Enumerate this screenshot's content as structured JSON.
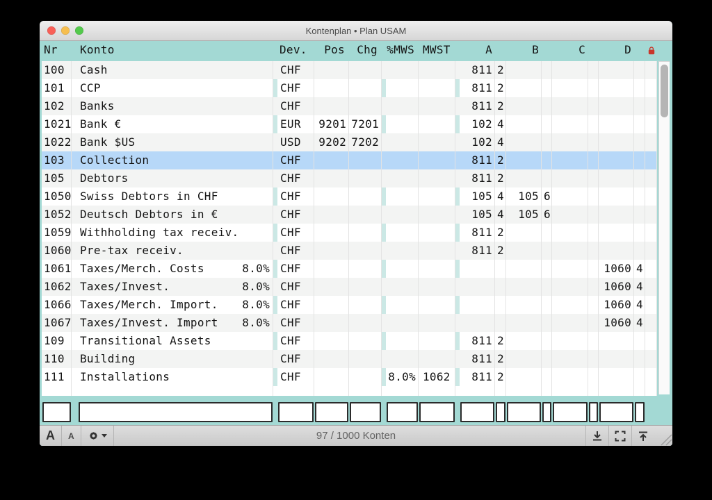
{
  "window": {
    "title": "Kontenplan • Plan USAM"
  },
  "colors": {
    "header_teal": "#a3d9d4",
    "separator_teal": "#cbe8e5",
    "selection_blue": "#b7d8f8",
    "row_alt_gray": "#f3f4f3",
    "lock_red": "#c9372b"
  },
  "icons": {
    "traffic": [
      "close-icon",
      "minimize-icon",
      "zoom-icon"
    ],
    "header_lock": "lock-icon",
    "settings": "gear-icon",
    "bottom_right": [
      "arrow-down-to-line-icon",
      "frame-icon",
      "arrow-up-from-line-icon"
    ],
    "resize": "resize-grip-icon"
  },
  "table": {
    "columns": {
      "nr": "Nr",
      "konto": "Konto",
      "dev": "Dev.",
      "pos": "Pos",
      "chg": "Chg",
      "mws": "%MWS",
      "mwst": "MWST",
      "a": "A",
      "b": "B",
      "c": "C",
      "d": "D"
    },
    "rows": [
      {
        "nr": "100",
        "konto": "Cash",
        "pct": "",
        "dev": "CHF",
        "pos": "",
        "chg": "",
        "mws": "",
        "mwst": "",
        "a": "811",
        "a2": "2",
        "b": "",
        "b2": "",
        "c": "",
        "c2": "",
        "d": "",
        "d2": "",
        "selected": false
      },
      {
        "nr": "101",
        "konto": "CCP",
        "pct": "",
        "dev": "CHF",
        "pos": "",
        "chg": "",
        "mws": "",
        "mwst": "",
        "a": "811",
        "a2": "2",
        "b": "",
        "b2": "",
        "c": "",
        "c2": "",
        "d": "",
        "d2": "",
        "selected": false
      },
      {
        "nr": "102",
        "konto": "Banks",
        "pct": "",
        "dev": "CHF",
        "pos": "",
        "chg": "",
        "mws": "",
        "mwst": "",
        "a": "811",
        "a2": "2",
        "b": "",
        "b2": "",
        "c": "",
        "c2": "",
        "d": "",
        "d2": "",
        "selected": false
      },
      {
        "nr": "1021",
        "konto": "Bank €",
        "pct": "",
        "dev": "EUR",
        "pos": "9201",
        "chg": "7201",
        "mws": "",
        "mwst": "",
        "a": "102",
        "a2": "4",
        "b": "",
        "b2": "",
        "c": "",
        "c2": "",
        "d": "",
        "d2": "",
        "selected": false
      },
      {
        "nr": "1022",
        "konto": "Bank $US",
        "pct": "",
        "dev": "USD",
        "pos": "9202",
        "chg": "7202",
        "mws": "",
        "mwst": "",
        "a": "102",
        "a2": "4",
        "b": "",
        "b2": "",
        "c": "",
        "c2": "",
        "d": "",
        "d2": "",
        "selected": false
      },
      {
        "nr": "103",
        "konto": "Collection",
        "pct": "",
        "dev": "CHF",
        "pos": "",
        "chg": "",
        "mws": "",
        "mwst": "",
        "a": "811",
        "a2": "2",
        "b": "",
        "b2": "",
        "c": "",
        "c2": "",
        "d": "",
        "d2": "",
        "selected": true
      },
      {
        "nr": "105",
        "konto": "Debtors",
        "pct": "",
        "dev": "CHF",
        "pos": "",
        "chg": "",
        "mws": "",
        "mwst": "",
        "a": "811",
        "a2": "2",
        "b": "",
        "b2": "",
        "c": "",
        "c2": "",
        "d": "",
        "d2": "",
        "selected": false
      },
      {
        "nr": "1050",
        "konto": "Swiss Debtors in CHF",
        "pct": "",
        "dev": "CHF",
        "pos": "",
        "chg": "",
        "mws": "",
        "mwst": "",
        "a": "105",
        "a2": "4",
        "b": "105",
        "b2": "6",
        "c": "",
        "c2": "",
        "d": "",
        "d2": "",
        "selected": false
      },
      {
        "nr": "1052",
        "konto": "Deutsch Debtors in €",
        "pct": "",
        "dev": "CHF",
        "pos": "",
        "chg": "",
        "mws": "",
        "mwst": "",
        "a": "105",
        "a2": "4",
        "b": "105",
        "b2": "6",
        "c": "",
        "c2": "",
        "d": "",
        "d2": "",
        "selected": false
      },
      {
        "nr": "1059",
        "konto": "Withholding tax receiv.",
        "pct": "",
        "dev": "CHF",
        "pos": "",
        "chg": "",
        "mws": "",
        "mwst": "",
        "a": "811",
        "a2": "2",
        "b": "",
        "b2": "",
        "c": "",
        "c2": "",
        "d": "",
        "d2": "",
        "selected": false
      },
      {
        "nr": "1060",
        "konto": "Pre-tax receiv.",
        "pct": "",
        "dev": "CHF",
        "pos": "",
        "chg": "",
        "mws": "",
        "mwst": "",
        "a": "811",
        "a2": "2",
        "b": "",
        "b2": "",
        "c": "",
        "c2": "",
        "d": "",
        "d2": "",
        "selected": false
      },
      {
        "nr": "1061",
        "konto": "Taxes/Merch. Costs",
        "pct": "8.0%",
        "dev": "CHF",
        "pos": "",
        "chg": "",
        "mws": "",
        "mwst": "",
        "a": "",
        "a2": "",
        "b": "",
        "b2": "",
        "c": "",
        "c2": "",
        "d": "1060",
        "d2": "4",
        "selected": false
      },
      {
        "nr": "1062",
        "konto": "Taxes/Invest.",
        "pct": "8.0%",
        "dev": "CHF",
        "pos": "",
        "chg": "",
        "mws": "",
        "mwst": "",
        "a": "",
        "a2": "",
        "b": "",
        "b2": "",
        "c": "",
        "c2": "",
        "d": "1060",
        "d2": "4",
        "selected": false
      },
      {
        "nr": "1066",
        "konto": "Taxes/Merch. Import.",
        "pct": "8.0%",
        "dev": "CHF",
        "pos": "",
        "chg": "",
        "mws": "",
        "mwst": "",
        "a": "",
        "a2": "",
        "b": "",
        "b2": "",
        "c": "",
        "c2": "",
        "d": "1060",
        "d2": "4",
        "selected": false
      },
      {
        "nr": "1067",
        "konto": "Taxes/Invest. Import",
        "pct": "8.0%",
        "dev": "CHF",
        "pos": "",
        "chg": "",
        "mws": "",
        "mwst": "",
        "a": "",
        "a2": "",
        "b": "",
        "b2": "",
        "c": "",
        "c2": "",
        "d": "1060",
        "d2": "4",
        "selected": false
      },
      {
        "nr": "109",
        "konto": "Transitional Assets",
        "pct": "",
        "dev": "CHF",
        "pos": "",
        "chg": "",
        "mws": "",
        "mwst": "",
        "a": "811",
        "a2": "2",
        "b": "",
        "b2": "",
        "c": "",
        "c2": "",
        "d": "",
        "d2": "",
        "selected": false
      },
      {
        "nr": "110",
        "konto": "Building",
        "pct": "",
        "dev": "CHF",
        "pos": "",
        "chg": "",
        "mws": "",
        "mwst": "",
        "a": "811",
        "a2": "2",
        "b": "",
        "b2": "",
        "c": "",
        "c2": "",
        "d": "",
        "d2": "",
        "selected": false
      },
      {
        "nr": "111",
        "konto": "Installations",
        "pct": "",
        "dev": "CHF",
        "pos": "",
        "chg": "",
        "mws": "8.0%",
        "mwst": "1062",
        "a": "811",
        "a2": "2",
        "b": "",
        "b2": "",
        "c": "",
        "c2": "",
        "d": "",
        "d2": "",
        "selected": false
      }
    ]
  },
  "statusbar": {
    "font_large": "A",
    "font_small": "A",
    "counter": "97 / 1000 Konten"
  }
}
